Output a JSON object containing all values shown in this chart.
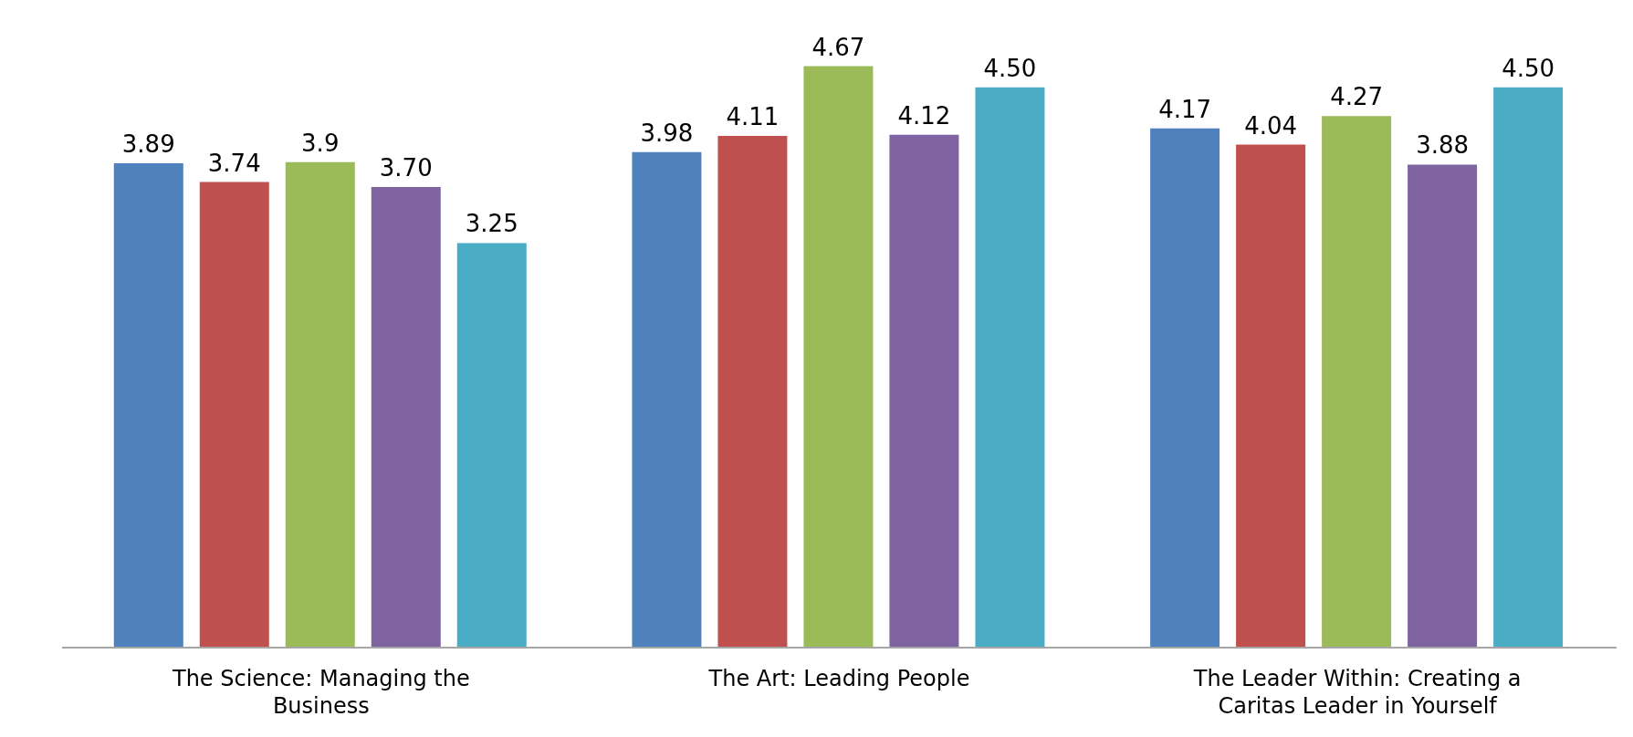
{
  "chart_data": {
    "type": "bar",
    "categories": [
      "The Science: Managing the Business",
      "The Art: Leading People",
      "The Leader Within: Creating a Caritas Leader in Yourself"
    ],
    "series": [
      {
        "color": "#4f81bd",
        "values": [
          3.89,
          3.98,
          4.17
        ],
        "value_labels": [
          "3.89",
          "3.98",
          "4.17"
        ]
      },
      {
        "color": "#c0504d",
        "values": [
          3.74,
          4.11,
          4.04
        ],
        "value_labels": [
          "3.74",
          "4.11",
          "4.04"
        ]
      },
      {
        "color": "#9bbb59",
        "values": [
          3.9,
          4.67,
          4.27
        ],
        "value_labels": [
          "3.9",
          "4.67",
          "4.27"
        ]
      },
      {
        "color": "#8064a2",
        "values": [
          3.7,
          4.12,
          3.88
        ],
        "value_labels": [
          "3.70",
          "4.12",
          "3.88"
        ]
      },
      {
        "color": "#4bacc6",
        "values": [
          3.25,
          4.5,
          4.5
        ],
        "value_labels": [
          "3.25",
          "4.50",
          "4.50"
        ]
      }
    ],
    "tick_labels": "x"
  }
}
